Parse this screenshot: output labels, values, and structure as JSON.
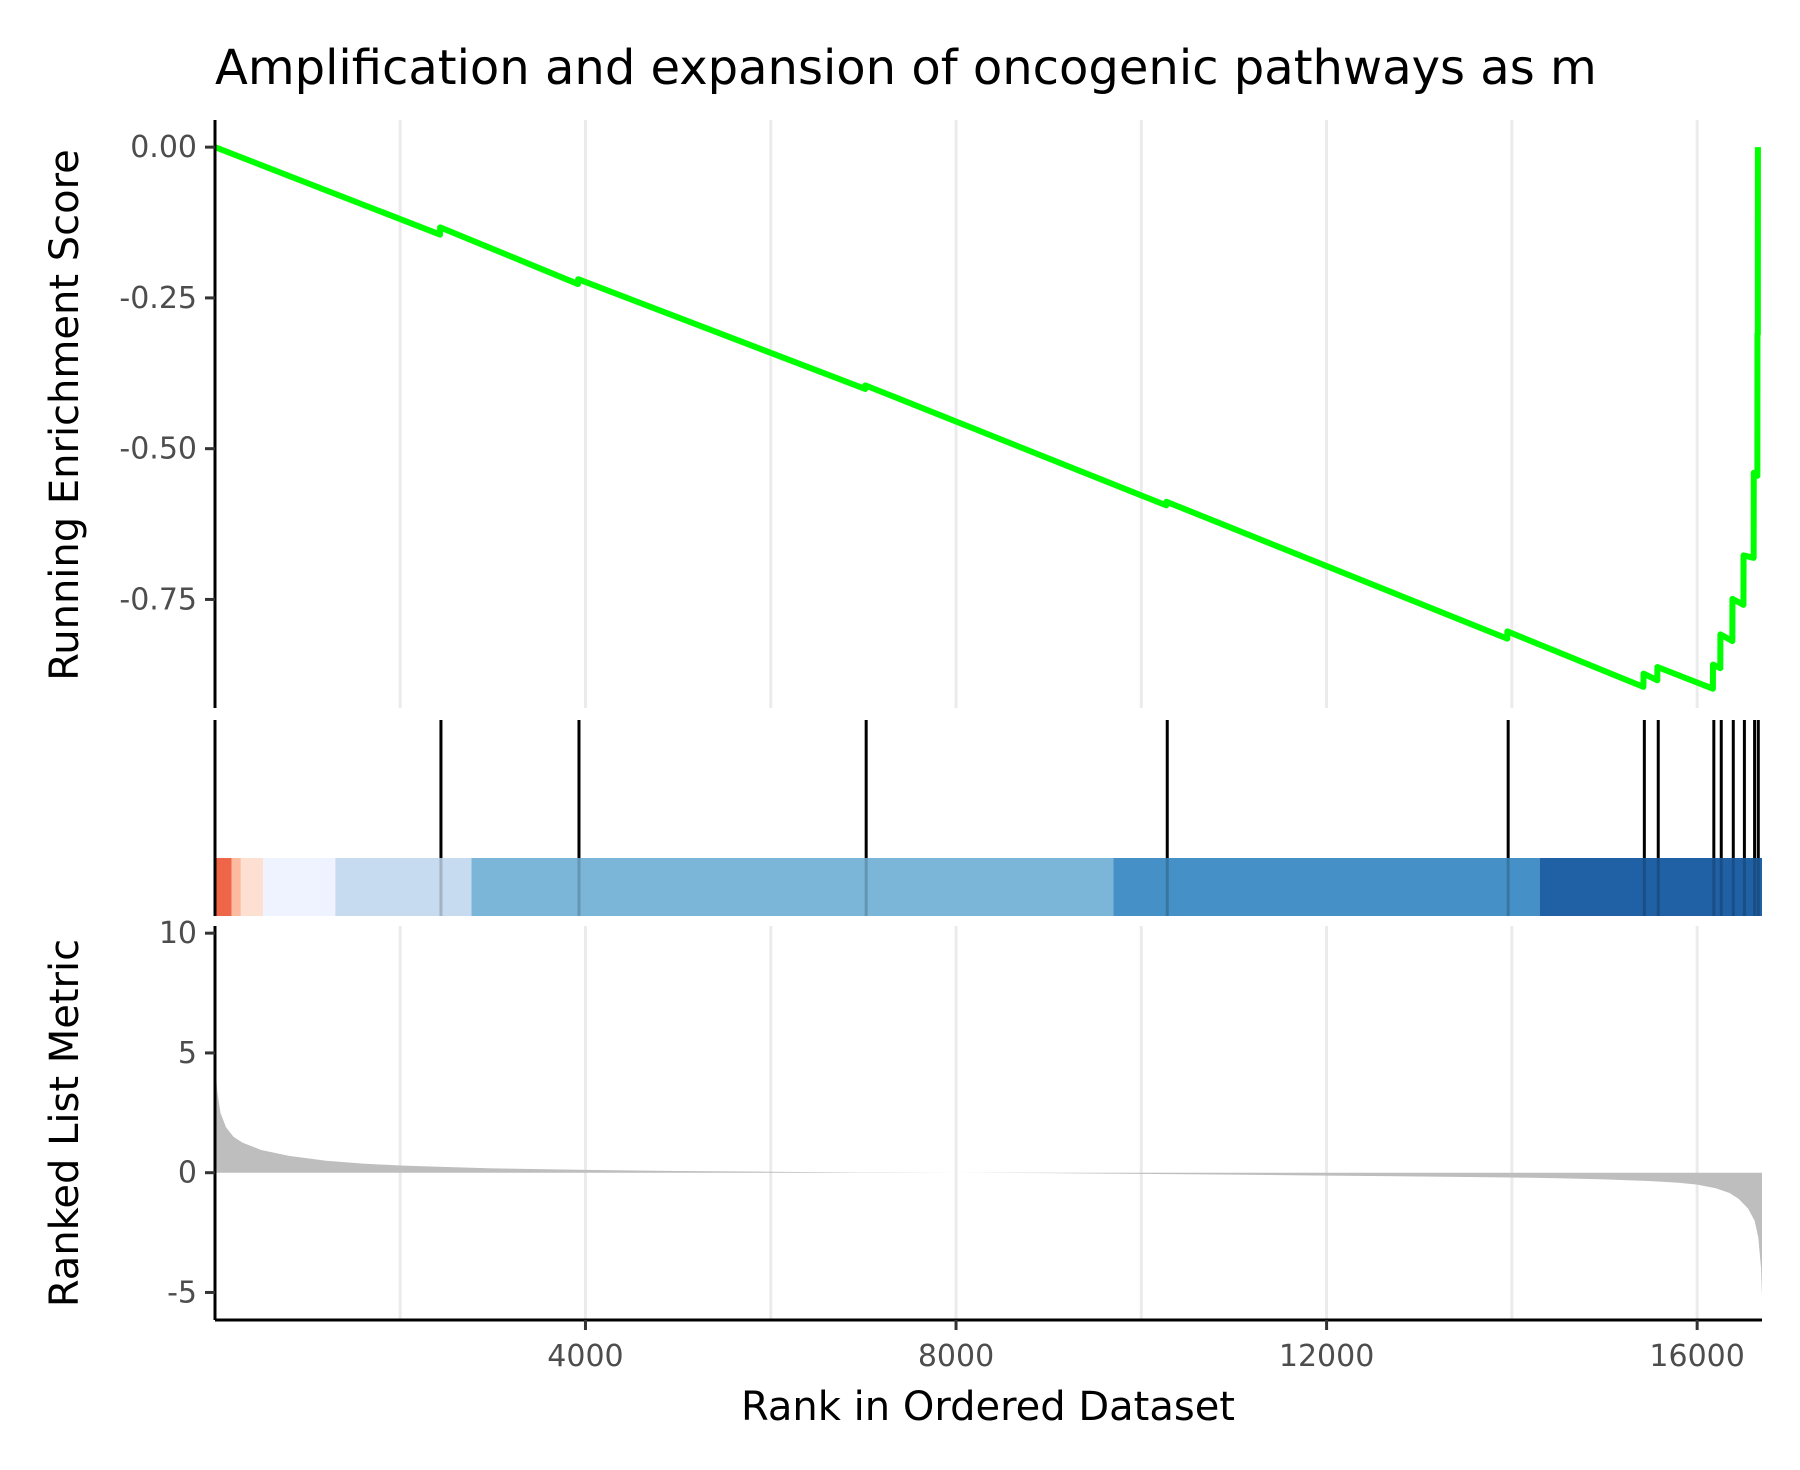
{
  "chart_data": {
    "type": "line",
    "title": "Amplification and expansion of oncogenic pathways as m",
    "xlabel": "Rank in Ordered Dataset",
    "xlim": [
      1,
      16700
    ],
    "x_ticks": [
      4000,
      8000,
      12000,
      16000
    ],
    "x_tick_labels": [
      "4000",
      "8000",
      "12000",
      "16000"
    ],
    "grid_x": [
      2000,
      4000,
      6000,
      8000,
      10000,
      12000,
      14000,
      16000
    ],
    "panels": {
      "running_score": {
        "ylabel": "Running Enrichment Score",
        "ylim": [
          -0.93,
          0.045
        ],
        "y_ticks": [
          0,
          -0.25,
          -0.5,
          -0.75
        ],
        "y_tick_labels": [
          "0.00",
          "-0.25",
          "-0.50",
          "-0.75"
        ],
        "series": [
          {
            "color": "#00ff00",
            "points": [
              [
                1,
                0.0
              ],
              [
                2430,
                -0.145
              ],
              [
                2431,
                -0.133
              ],
              [
                3920,
                -0.227
              ],
              [
                3921,
                -0.219
              ],
              [
                7020,
                -0.401
              ],
              [
                7021,
                -0.395
              ],
              [
                10270,
                -0.594
              ],
              [
                10271,
                -0.588
              ],
              [
                13950,
                -0.815
              ],
              [
                13951,
                -0.803
              ],
              [
                15420,
                -0.895
              ],
              [
                15421,
                -0.873
              ],
              [
                15570,
                -0.884
              ],
              [
                15571,
                -0.862
              ],
              [
                16170,
                -0.898
              ],
              [
                16171,
                -0.858
              ],
              [
                16250,
                -0.864
              ],
              [
                16251,
                -0.808
              ],
              [
                16380,
                -0.819
              ],
              [
                16381,
                -0.749
              ],
              [
                16500,
                -0.759
              ],
              [
                16501,
                -0.677
              ],
              [
                16610,
                -0.681
              ],
              [
                16611,
                -0.54
              ],
              [
                16650,
                -0.545
              ],
              [
                16651,
                -0.31
              ],
              [
                16655,
                -0.31
              ],
              [
                16656,
                0.0
              ]
            ]
          }
        ]
      },
      "gene_hits": {
        "positions": [
          2440,
          3930,
          7030,
          10280,
          13960,
          15430,
          15580,
          16180,
          16260,
          16390,
          16510,
          16620,
          16660
        ]
      },
      "color_bar": {
        "segments": [
          {
            "from": 1,
            "to": 180,
            "color": "#ef6548"
          },
          {
            "from": 180,
            "to": 280,
            "color": "#fcbba1"
          },
          {
            "from": 280,
            "to": 520,
            "color": "#fee0d2"
          },
          {
            "from": 520,
            "to": 1300,
            "color": "#eff3ff"
          },
          {
            "from": 1300,
            "to": 2770,
            "color": "#c6dbef"
          },
          {
            "from": 2770,
            "to": 9700,
            "color": "#7bb6d9"
          },
          {
            "from": 9700,
            "to": 14300,
            "color": "#4590c6"
          },
          {
            "from": 14300,
            "to": 16700,
            "color": "#2060a4"
          }
        ]
      },
      "ranked_metric": {
        "ylabel": "Ranked List Metric",
        "ylim": [
          -6.15,
          10.3
        ],
        "y_ticks": [
          10,
          5,
          0,
          -5
        ],
        "y_tick_labels": [
          "10",
          "5",
          "0",
          "-5"
        ],
        "fill_color": "#bebebe",
        "points": [
          [
            1,
            4.7
          ],
          [
            25,
            3.4
          ],
          [
            60,
            2.5
          ],
          [
            120,
            1.9
          ],
          [
            200,
            1.5
          ],
          [
            300,
            1.25
          ],
          [
            500,
            0.95
          ],
          [
            800,
            0.7
          ],
          [
            1200,
            0.5
          ],
          [
            1600,
            0.38
          ],
          [
            2000,
            0.3
          ],
          [
            2500,
            0.24
          ],
          [
            3000,
            0.18
          ],
          [
            4000,
            0.12
          ],
          [
            5000,
            0.07
          ],
          [
            6000,
            0.04
          ],
          [
            7000,
            0.01
          ],
          [
            8000,
            0.0
          ],
          [
            9000,
            -0.02
          ],
          [
            10000,
            -0.05
          ],
          [
            11000,
            -0.08
          ],
          [
            12000,
            -0.12
          ],
          [
            13000,
            -0.16
          ],
          [
            14000,
            -0.2
          ],
          [
            14500,
            -0.23
          ],
          [
            15000,
            -0.28
          ],
          [
            15500,
            -0.35
          ],
          [
            15800,
            -0.42
          ],
          [
            16000,
            -0.5
          ],
          [
            16200,
            -0.65
          ],
          [
            16350,
            -0.85
          ],
          [
            16450,
            -1.1
          ],
          [
            16550,
            -1.5
          ],
          [
            16620,
            -2.0
          ],
          [
            16660,
            -2.7
          ],
          [
            16690,
            -4.0
          ],
          [
            16700,
            -5.2
          ]
        ]
      }
    }
  }
}
